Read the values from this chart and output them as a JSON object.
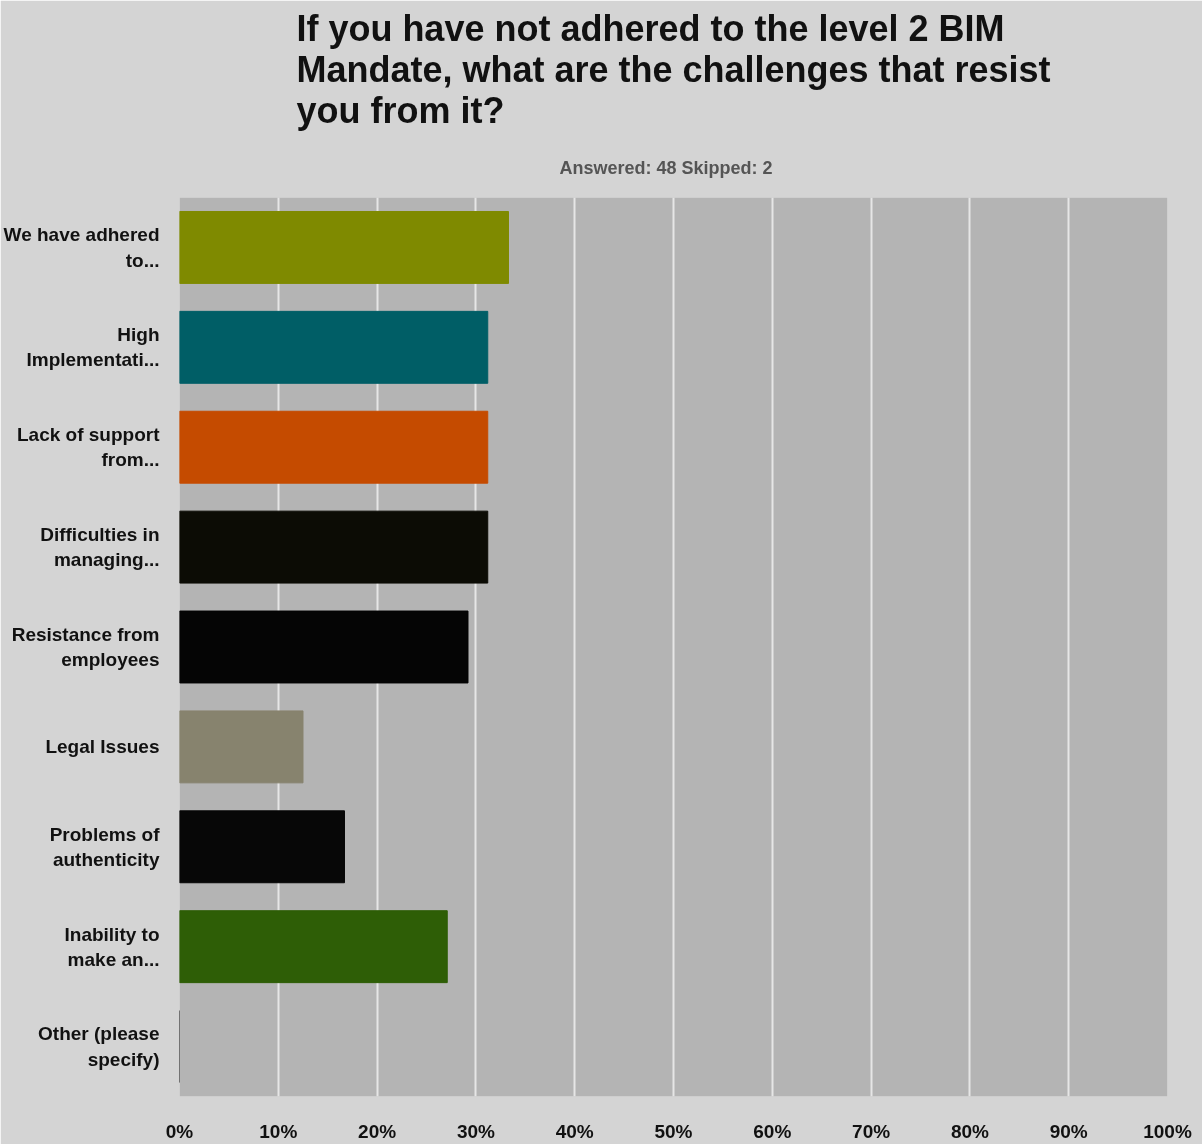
{
  "chart_data": {
    "type": "bar",
    "orientation": "horizontal",
    "title": "If you have not adhered to the level 2 BIM Mandate, what are the challenges that resist you from it?",
    "subtitle": "Answered: 48    Skipped: 2",
    "categories": [
      "We have adhered to...",
      "High Implementati...",
      "Lack of support from...",
      "Difficulties in managing...",
      "Resistance from employees",
      "Legal Issues",
      "Problems of authenticity",
      "Inability to make an...",
      "Other (please specify)"
    ],
    "values": [
      33.3,
      31.2,
      31.2,
      31.2,
      29.2,
      12.5,
      16.7,
      27.1,
      0
    ],
    "colors": [
      "#7f8a00",
      "#005e66",
      "#c54b00",
      "#0c0c05",
      "#050505",
      "#87836e",
      "#070707",
      "#2e5e06",
      "#555555"
    ],
    "xlim": [
      0,
      100
    ],
    "xticks": [
      {
        "value": 0,
        "label": "0%"
      },
      {
        "value": 10,
        "label": "10%"
      },
      {
        "value": 20,
        "label": "20%"
      },
      {
        "value": 30,
        "label": "30%"
      },
      {
        "value": 40,
        "label": "40%"
      },
      {
        "value": 50,
        "label": "50%"
      },
      {
        "value": 60,
        "label": "60%"
      },
      {
        "value": 70,
        "label": "70%"
      },
      {
        "value": 80,
        "label": "80%"
      },
      {
        "value": 90,
        "label": "90%"
      },
      {
        "value": 100,
        "label": "100%"
      }
    ],
    "grid": "x"
  }
}
